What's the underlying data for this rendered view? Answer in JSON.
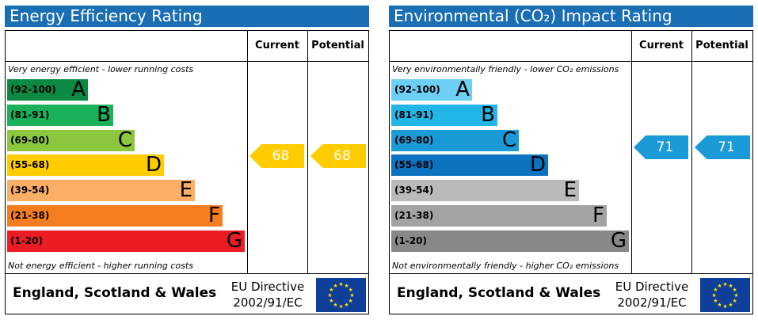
{
  "chart_data": [
    {
      "type": "bar",
      "title": "Energy Efficiency Rating",
      "columns": [
        "Current",
        "Potential"
      ],
      "top_note": "Very energy efficient - lower running costs",
      "bottom_note": "Not energy efficient - higher running costs",
      "bands": [
        {
          "range": "(92-100)",
          "letter": "A",
          "color": "#0c8a44"
        },
        {
          "range": "(81-91)",
          "letter": "B",
          "color": "#1bb05a"
        },
        {
          "range": "(69-80)",
          "letter": "C",
          "color": "#8cc63f"
        },
        {
          "range": "(55-68)",
          "letter": "D",
          "color": "#ffcc00"
        },
        {
          "range": "(39-54)",
          "letter": "E",
          "color": "#fbae65"
        },
        {
          "range": "(21-38)",
          "letter": "F",
          "color": "#f47d20"
        },
        {
          "range": "(1-20)",
          "letter": "G",
          "color": "#ed1c24"
        }
      ],
      "current": {
        "value": "68",
        "color": "#ffcc00"
      },
      "potential": {
        "value": "68",
        "color": "#ffcc00"
      },
      "footer_country": "England, Scotland & Wales",
      "footer_directive_line1": "EU Directive",
      "footer_directive_line2": "2002/91/EC"
    },
    {
      "type": "bar",
      "title": "Environmental (CO₂) Impact Rating",
      "columns": [
        "Current",
        "Potential"
      ],
      "top_note": "Very environmentally friendly - lower CO₂ emissions",
      "bottom_note": "Not environmentally friendly - higher CO₂ emissions",
      "bands": [
        {
          "range": "(92-100)",
          "letter": "A",
          "color": "#6ecff6"
        },
        {
          "range": "(81-91)",
          "letter": "B",
          "color": "#22b5e8"
        },
        {
          "range": "(69-80)",
          "letter": "C",
          "color": "#1a9ad7"
        },
        {
          "range": "(55-68)",
          "letter": "D",
          "color": "#0b73c2"
        },
        {
          "range": "(39-54)",
          "letter": "E",
          "color": "#bababa"
        },
        {
          "range": "(21-38)",
          "letter": "F",
          "color": "#a3a3a3"
        },
        {
          "range": "(1-20)",
          "letter": "G",
          "color": "#888888"
        }
      ],
      "current": {
        "value": "71",
        "color": "#1a9ad7"
      },
      "potential": {
        "value": "71",
        "color": "#1a9ad7"
      },
      "footer_country": "England, Scotland & Wales",
      "footer_directive_line1": "EU Directive",
      "footer_directive_line2": "2002/91/EC"
    }
  ]
}
